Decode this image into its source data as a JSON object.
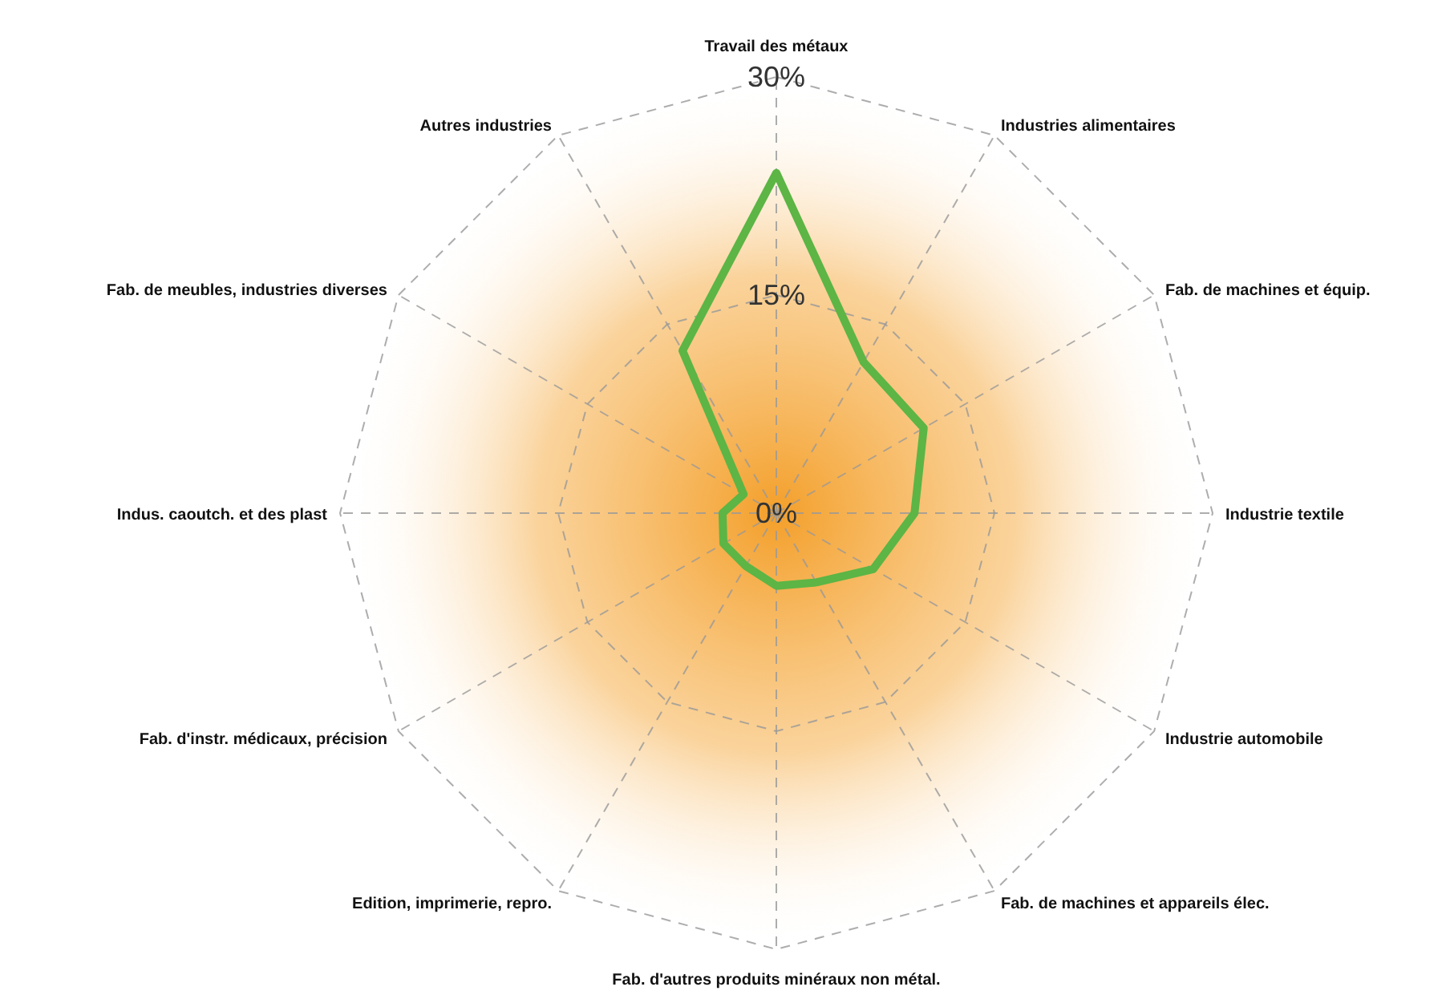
{
  "chart_data": {
    "type": "radar",
    "categories": [
      "Travail des métaux",
      "Industries alimentaires",
      "Fab. de machines et équip.",
      "Industrie textile",
      "Industrie automobile",
      "Fab. de machines et appareils élec.",
      "Fab. d'autres produits minéraux non métal.",
      "Edition, imprimerie, repro.",
      "Fab. d'instr. médicaux, précision",
      "Indus.  caoutch. et des plast",
      "Fab. de meubles, industries diverses",
      "Autres industries"
    ],
    "series": [
      {
        "color": "#5cb545",
        "values": [
          23.4,
          12,
          11.7,
          9.5,
          7.7,
          5.5,
          5,
          4.2,
          4.2,
          3.7,
          2.6,
          12.9
        ]
      }
    ],
    "ylim": [
      0,
      30
    ],
    "yticks": [
      {
        "value": 0,
        "label": "0%"
      },
      {
        "value": 15,
        "label": "15%"
      },
      {
        "value": 30,
        "label": "30%"
      }
    ],
    "grid": true,
    "marker": "none",
    "line_style": "solid"
  }
}
